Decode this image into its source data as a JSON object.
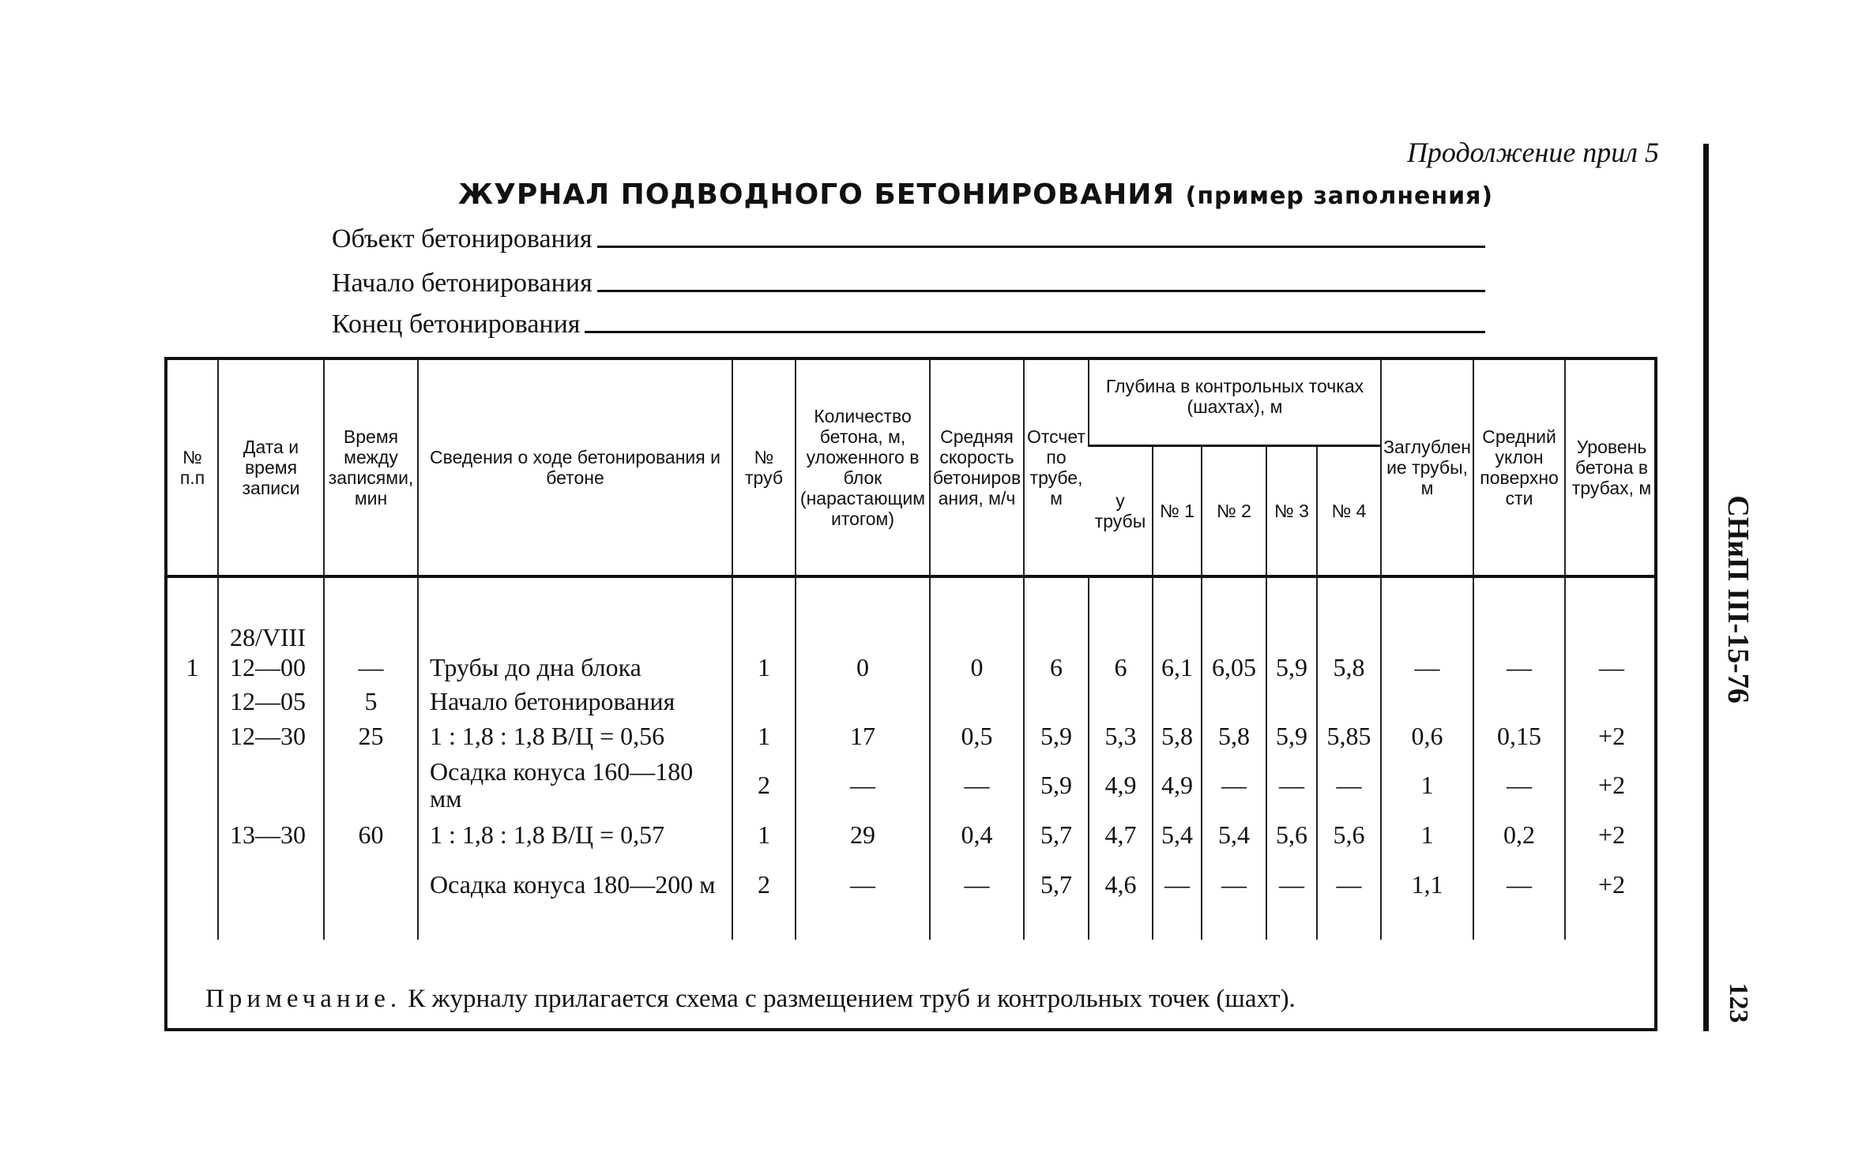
{
  "continuation": "Продолжение прил 5",
  "title": "ЖУРНАЛ ПОДВОДНОГО БЕТОНИРОВАНИЯ",
  "title_suffix": "(пример заполнения)",
  "fields": [
    "Объект бетонирования",
    "Начало бетонирования",
    "Конец бетонирования"
  ],
  "side_label": "СНиП III-15-76",
  "page_number": "123",
  "headers": {
    "num": "№ п.п",
    "date": "Дата и время записи",
    "interval": "Время между записями, мин",
    "info": "Сведения о ходе бетонирования и бетоне",
    "pipe": "№ труб",
    "amount": "Количество бетона, м, уложенного в блок (нарастающим итогом)",
    "speed": "Средняя скорость бетонирования, м/ч",
    "reading": "Отсчет по трубе, м",
    "depth_group": "Глубина в контрольных точках (шахтах), м",
    "depth_pipe": "у трубы",
    "d1": "№ 1",
    "d2": "№ 2",
    "d3": "№ 3",
    "d4": "№ 4",
    "embed": "Заглубление трубы, м",
    "slope": "Средний уклон поверхности",
    "level": "Уровень бетона в трубах, м"
  },
  "rows": [
    [
      "",
      "28/VIII",
      "",
      "",
      "",
      "",
      "",
      "",
      "",
      "",
      "",
      "",
      "",
      "",
      "",
      ""
    ],
    [
      "1",
      "12—00",
      "—",
      "Трубы до дна блока",
      "1",
      "0",
      "0",
      "6",
      "6",
      "6,1",
      "6,05",
      "5,9",
      "5,8",
      "—",
      "—",
      "—"
    ],
    [
      "",
      "12—05",
      "5",
      "Начало бетонирования",
      "",
      "",
      "",
      "",
      "",
      "",
      "",
      "",
      "",
      "",
      "",
      ""
    ],
    [
      "",
      "12—30",
      "25",
      "1 : 1,8 : 1,8  В/Ц = 0,56",
      "1",
      "17",
      "0,5",
      "5,9",
      "5,3",
      "5,8",
      "5,8",
      "5,9",
      "5,85",
      "0,6",
      "0,15",
      "+2"
    ],
    [
      "",
      "",
      "",
      "Осадка конуса 160—180 мм",
      "2",
      "—",
      "—",
      "5,9",
      "4,9",
      "4,9",
      "—",
      "—",
      "—",
      "1",
      "—",
      "+2"
    ],
    [
      "",
      "13—30",
      "60",
      "1 : 1,8 : 1,8  В/Ц = 0,57",
      "1",
      "29",
      "0,4",
      "5,7",
      "4,7",
      "5,4",
      "5,4",
      "5,6",
      "5,6",
      "1",
      "0,2",
      "+2"
    ],
    [
      "",
      "",
      "",
      "Осадка конуса 180—200 м",
      "2",
      "—",
      "—",
      "5,7",
      "4,6",
      "—",
      "—",
      "—",
      "—",
      "1,1",
      "—",
      "+2"
    ]
  ],
  "note_label": "Примечание.",
  "note_text": " К журналу прилагается схема с размещением труб и контрольных точек (шахт)."
}
